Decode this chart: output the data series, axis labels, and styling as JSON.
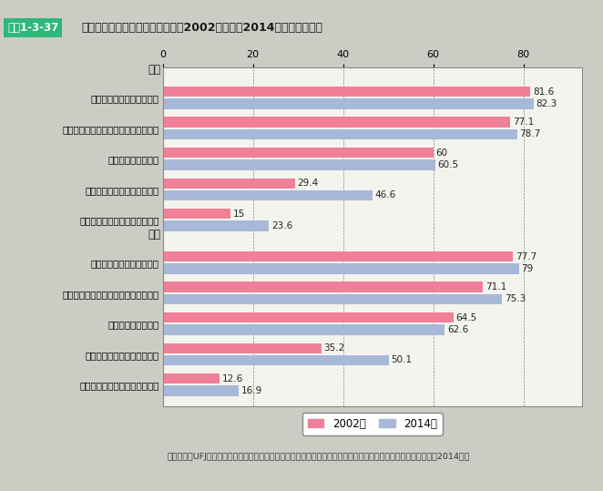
{
  "header_label": "図表1-3-37",
  "header_title": "子どもが生まれる前の子育て観（2002年調査と2014年調査の比較）",
  "footer": "資料：三菱UFJリサーチ＆コンサルティング株式会社「子育て支援策等に関する調査（未就学児の父母調査）」（2014年）",
  "xticks": [
    0,
    20,
    40,
    60,
    80
  ],
  "xlim_max": 90,
  "background_color": "#ccccc4",
  "plot_bg_color": "#f4f4ee",
  "header_bg": "#2eb87a",
  "color_2002": "#f08098",
  "color_2014": "#a8b8d8",
  "legend_2002": "2002年",
  "legend_2014": "2014年",
  "father_label": "父親",
  "mother_label": "母親",
  "categories": [
    "子どもを持つのが当たり前",
    "子どもが好きで、欲しいと思っていた",
    "子育ては楽しいもの",
    "子どもを持つのが不安だった",
    "子育ては大変、関わりたくない"
  ],
  "father_2002": [
    81.6,
    77.1,
    60.0,
    29.4,
    15.0
  ],
  "father_2014": [
    82.3,
    78.7,
    60.5,
    46.6,
    23.6
  ],
  "mother_2002": [
    77.7,
    71.1,
    64.5,
    35.2,
    12.6
  ],
  "mother_2014": [
    79.0,
    75.3,
    62.6,
    50.1,
    16.9
  ]
}
